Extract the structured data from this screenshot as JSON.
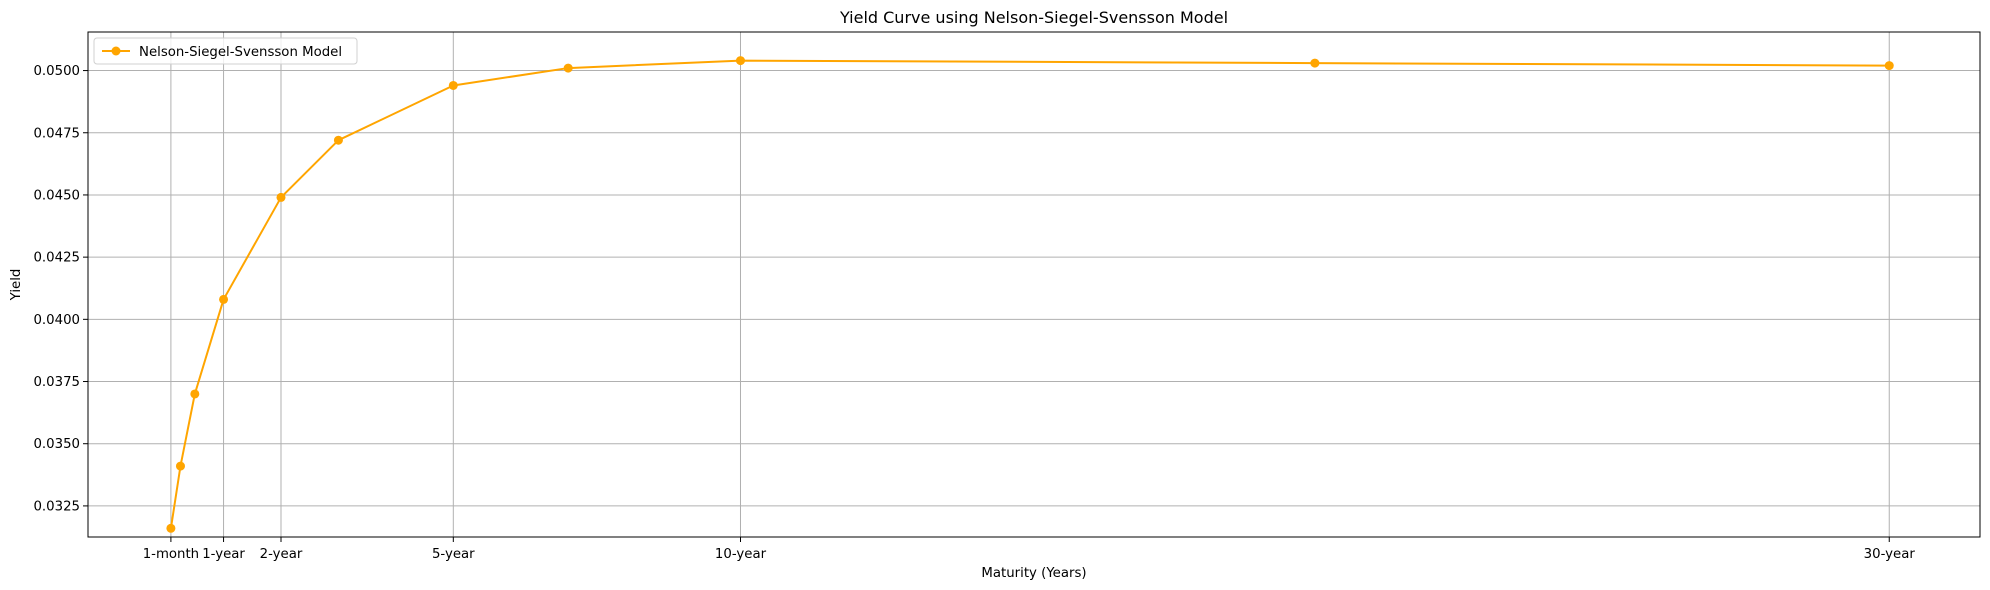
{
  "chart_data": {
    "type": "line",
    "title": "Yield Curve using Nelson-Siegel-Svensson Model",
    "xlabel": "Maturity (Years)",
    "ylabel": "Yield",
    "xlim": [
      -1.36,
      31.58
    ],
    "ylim": [
      0.03125,
      0.05155
    ],
    "grid": true,
    "legend_position": "top-left",
    "x_ticks": [
      {
        "value": 0.0833,
        "label": "1-month"
      },
      {
        "value": 1,
        "label": "1-year"
      },
      {
        "value": 2,
        "label": "2-year"
      },
      {
        "value": 5,
        "label": "5-year"
      },
      {
        "value": 10,
        "label": "10-year"
      },
      {
        "value": 30,
        "label": "30-year"
      }
    ],
    "y_ticks": [
      {
        "value": 0.0325,
        "label": "0.0325"
      },
      {
        "value": 0.035,
        "label": "0.0350"
      },
      {
        "value": 0.0375,
        "label": "0.0375"
      },
      {
        "value": 0.04,
        "label": "0.0400"
      },
      {
        "value": 0.0425,
        "label": "0.0425"
      },
      {
        "value": 0.045,
        "label": "0.0450"
      },
      {
        "value": 0.0475,
        "label": "0.0475"
      },
      {
        "value": 0.05,
        "label": "0.0500"
      }
    ],
    "series": [
      {
        "name": "Nelson-Siegel-Svensson Model",
        "color": "#ffa500",
        "marker": "circle",
        "x": [
          0.0833,
          0.25,
          0.5,
          1,
          2,
          3,
          5,
          7,
          10,
          20,
          30
        ],
        "y": [
          0.0316,
          0.0341,
          0.037,
          0.0408,
          0.0449,
          0.0472,
          0.0494,
          0.0501,
          0.0504,
          0.0503,
          0.0502
        ]
      }
    ]
  }
}
